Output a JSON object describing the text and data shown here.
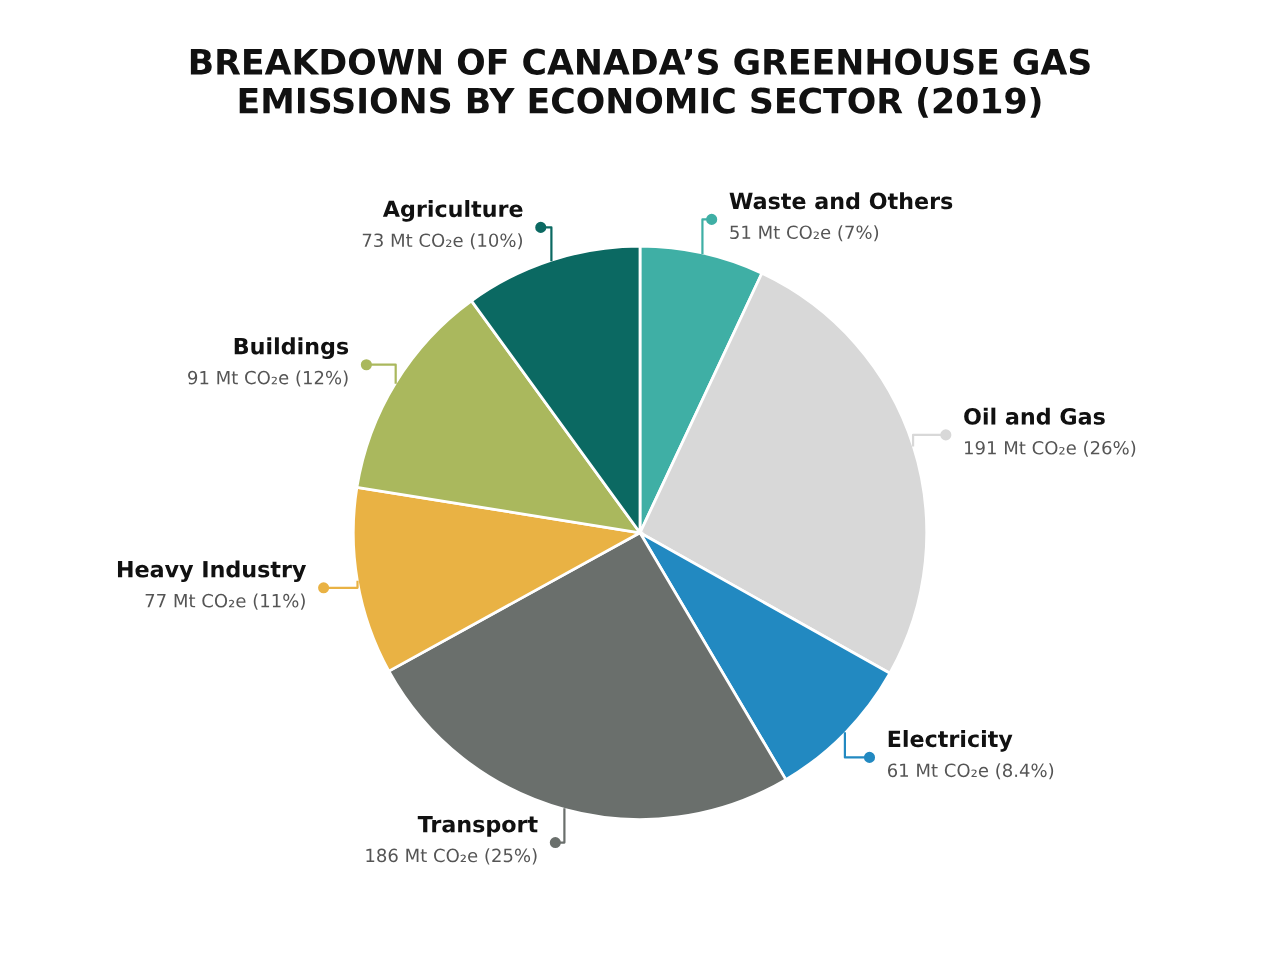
{
  "chart_data": {
    "type": "pie",
    "title": "BREAKDOWN OF CANADA’S GREENHOUSE GAS\nEMISSIONS BY ECONOMIC SECTOR (2019)",
    "categories": [
      "Waste and Others",
      "Oil and Gas",
      "Electricity",
      "Transport",
      "Heavy Industry",
      "Buildings",
      "Agriculture"
    ],
    "values": [
      51,
      191,
      61,
      186,
      77,
      91,
      73
    ],
    "value_labels": [
      "51 Mt CO₂e (7%)",
      "191 Mt CO₂e (26%)",
      "61 Mt CO₂e (8.4%)",
      "186 Mt CO₂e (25%)",
      "77 Mt CO₂e (11%)",
      "91 Mt CO₂e (12%)",
      "73 Mt CO₂e (10%)"
    ],
    "colors": [
      "#3fafa5",
      "#d8d8d8",
      "#2289c1",
      "#6a6f6c",
      "#e9b244",
      "#aab85d",
      "#0b6962"
    ]
  }
}
